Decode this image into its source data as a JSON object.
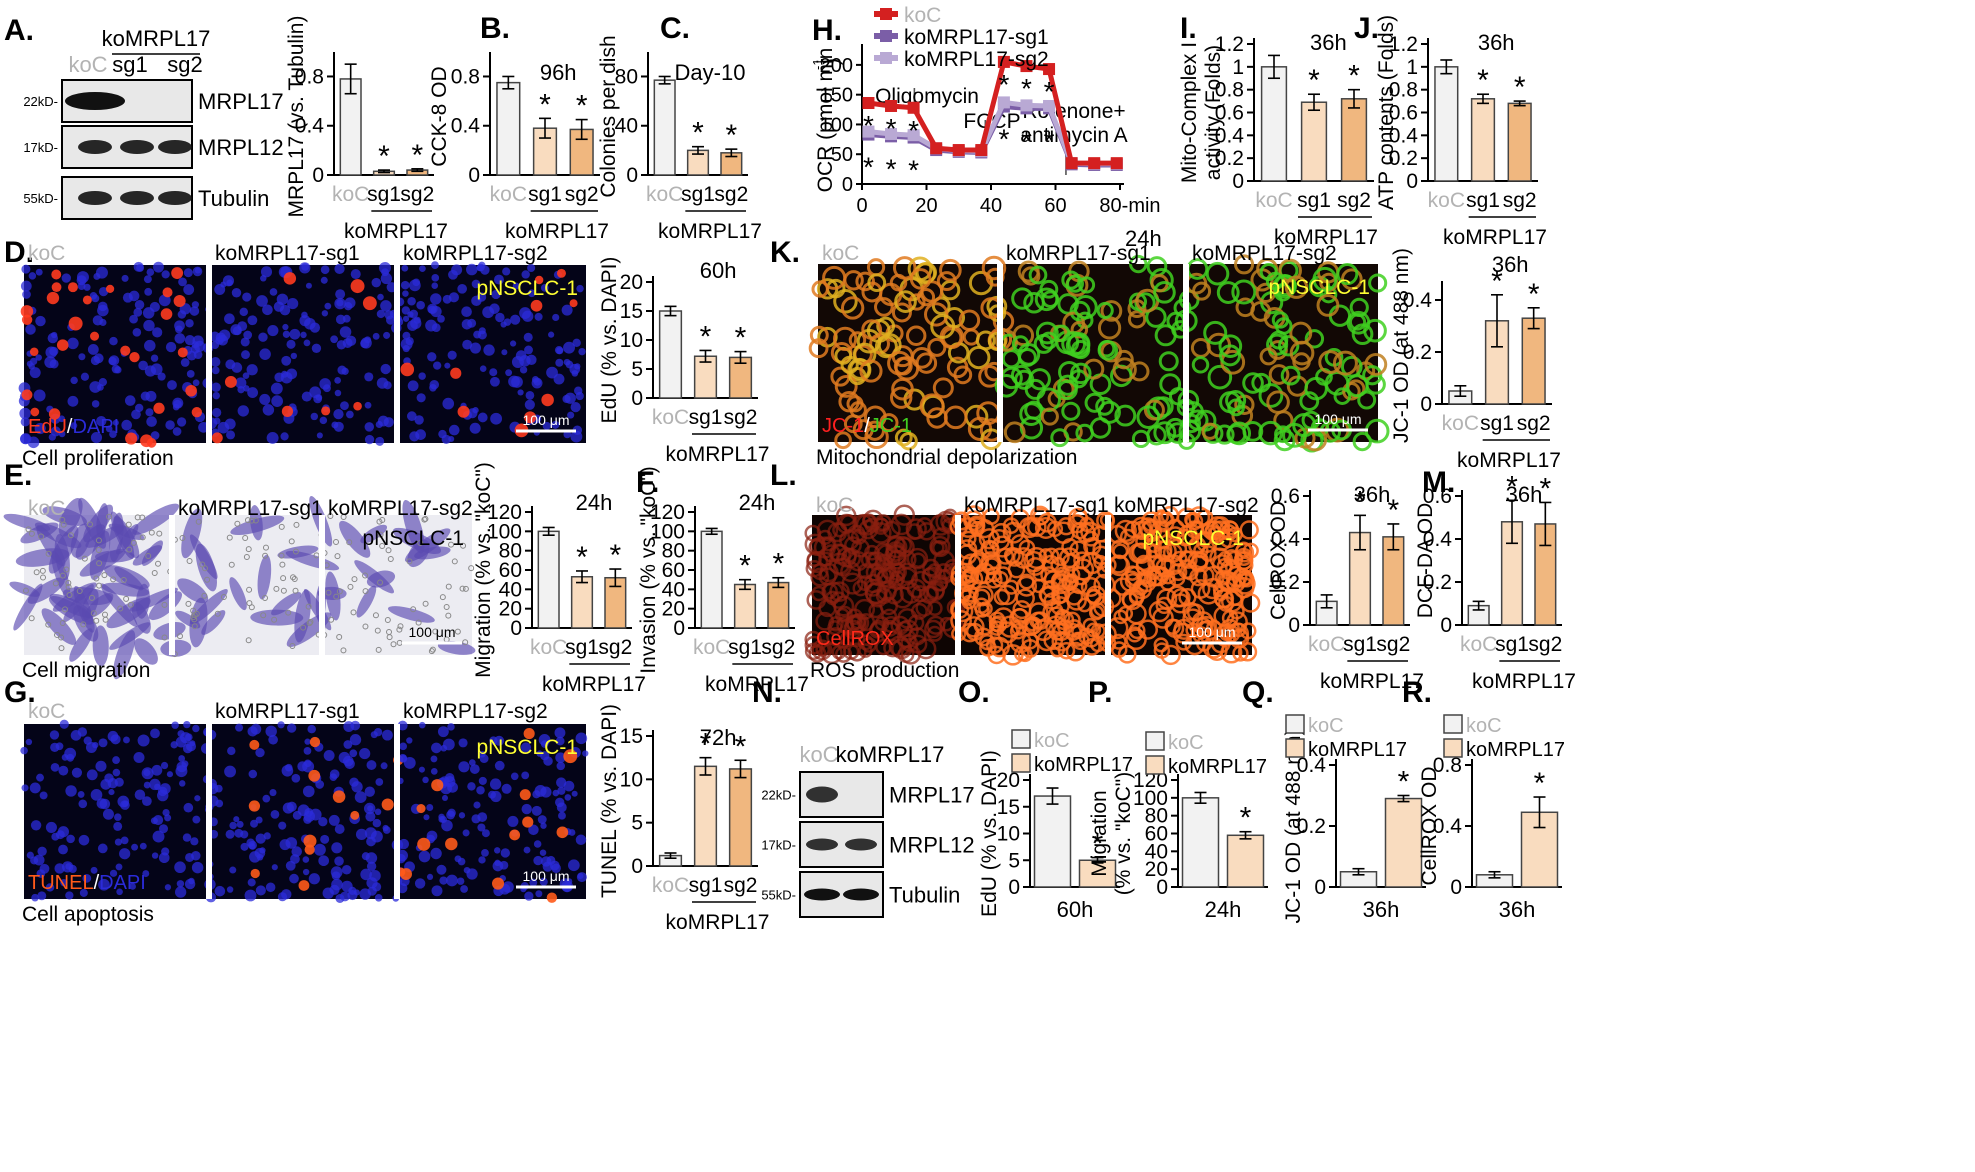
{
  "colors": {
    "koC": "#f2f2f2",
    "sg1": "#f9dcbf",
    "sg2": "#f0b77f",
    "single": "#f9dcbf",
    "koC_label": "#b3b3b3",
    "line_koC": "#d42020",
    "line_sg1": "#7b5ea7",
    "line_sg2": "#b9a9d4",
    "edu": "#ff3b1f",
    "dapi": "#2b2bd9",
    "jc_red": "#ff2020",
    "jc_green": "#40d020",
    "pnsclc": "#ffff33",
    "cellrox": "#ff2a1a",
    "tunel": "#ff5a1a"
  },
  "panels": {
    "A": {
      "letter": "A.",
      "group": "koMRPL17",
      "lanes": [
        "koC",
        "sg1",
        "sg2"
      ],
      "bands": [
        "MRPL17",
        "MRPL12",
        "Tubulin"
      ],
      "markers": [
        "22kD-",
        "17kD-",
        "55kD-"
      ]
    },
    "B": {
      "letter": "B."
    },
    "C": {
      "letter": "C."
    },
    "D": {
      "letter": "D.",
      "cols": [
        "koC",
        "koMRPL17-sg1",
        "koMRPL17-sg2"
      ],
      "badge": "pNSCLC-1",
      "stain1": "EdU",
      "sep": "/",
      "stain2": "DAPI",
      "scale": "100 μm",
      "caption": "Cell proliferation"
    },
    "E": {
      "letter": "E.",
      "cols": [
        "koC",
        "koMRPL17-sg1",
        "koMRPL17-sg2"
      ],
      "badge": "pNSCLC-1",
      "scale": "100 μm",
      "caption": "Cell migration"
    },
    "F": {
      "letter": "F."
    },
    "G": {
      "letter": "G.",
      "cols": [
        "koC",
        "koMRPL17-sg1",
        "koMRPL17-sg2"
      ],
      "badge": "pNSCLC-1",
      "stain1": "TUNEL",
      "sep": "/",
      "stain2": "DAPI",
      "scale": "100 μm",
      "caption": "Cell apoptosis"
    },
    "H": {
      "letter": "H.",
      "ann": [
        "Oligomycin",
        "FCCP",
        "Rotenone+",
        "antimycin A"
      ],
      "time": "24h"
    },
    "I": {
      "letter": "I."
    },
    "J": {
      "letter": "J."
    },
    "K": {
      "letter": "K.",
      "cols": [
        "koC",
        "koMRPL17-sg1",
        "koMRPL17-sg2"
      ],
      "badge": "pNSCLC-1",
      "stain1": "JC-1",
      "sep": "/",
      "stain2": "JC-1",
      "scale": "100 μm",
      "caption": "Mitochondrial depolarization"
    },
    "L": {
      "letter": "L.",
      "cols": [
        "koC",
        "koMRPL17-sg1",
        "koMRPL17-sg2"
      ],
      "badge": "pNSCLC-1",
      "stain1": "CellROX",
      "scale": "100 μm",
      "caption": "ROS production"
    },
    "M": {
      "letter": "M."
    },
    "N": {
      "letter": "N.",
      "lanes": [
        "koC",
        "koMRPL17"
      ],
      "bands": [
        "MRPL17",
        "MRPL12",
        "Tubulin"
      ],
      "markers": [
        "22kD-",
        "17kD-",
        "55kD-"
      ]
    },
    "O": {
      "letter": "O."
    },
    "P": {
      "letter": "P."
    },
    "Q": {
      "letter": "Q."
    },
    "R": {
      "letter": "R."
    }
  },
  "chart_data": [
    {
      "id": "A",
      "type": "bar",
      "categories": [
        "koC",
        "sg1",
        "sg2"
      ],
      "values": [
        0.78,
        0.03,
        0.04
      ],
      "errors": [
        0.12,
        0.01,
        0.01
      ],
      "sig": [
        false,
        true,
        true
      ],
      "ylabel": "MRPL17 (vs. Tubulin)",
      "yticks": [
        0,
        0.4,
        0.8
      ],
      "ylim": [
        0,
        0.95
      ],
      "group": "koMRPL17"
    },
    {
      "id": "B",
      "type": "bar",
      "title": "96h",
      "categories": [
        "koC",
        "sg1",
        "sg2"
      ],
      "values": [
        0.75,
        0.38,
        0.37
      ],
      "errors": [
        0.05,
        0.08,
        0.08
      ],
      "sig": [
        false,
        true,
        true
      ],
      "ylabel": "CCK-8 OD",
      "yticks": [
        0,
        0.4,
        0.8
      ],
      "ylim": [
        0,
        0.95
      ],
      "group": "koMRPL17"
    },
    {
      "id": "C",
      "type": "bar",
      "title": "Day-10",
      "categories": [
        "koC",
        "sg1",
        "sg2"
      ],
      "values": [
        77,
        20,
        18
      ],
      "errors": [
        3,
        3,
        3
      ],
      "sig": [
        false,
        true,
        true
      ],
      "ylabel": "Colonies per dish",
      "yticks": [
        0,
        40,
        80
      ],
      "ylim": [
        0,
        95
      ],
      "group": "koMRPL17"
    },
    {
      "id": "D",
      "type": "bar",
      "title": "60h",
      "categories": [
        "koC",
        "sg1",
        "sg2"
      ],
      "values": [
        15,
        7.2,
        7
      ],
      "errors": [
        0.8,
        1,
        1
      ],
      "sig": [
        false,
        true,
        true
      ],
      "ylabel": "EdU (% vs. DAPI)",
      "yticks": [
        0,
        5,
        10,
        15,
        20
      ],
      "ylim": [
        0,
        20
      ],
      "group": "koMRPL17"
    },
    {
      "id": "E",
      "type": "bar",
      "title": "24h",
      "categories": [
        "koC",
        "sg1",
        "sg2"
      ],
      "values": [
        100,
        53,
        52
      ],
      "errors": [
        4,
        6,
        9
      ],
      "sig": [
        false,
        true,
        true
      ],
      "ylabel": "Migration (% vs. \"koC\")",
      "yticks": [
        0,
        20,
        40,
        60,
        80,
        100,
        120
      ],
      "ylim": [
        0,
        120
      ],
      "group": "koMRPL17"
    },
    {
      "id": "F",
      "type": "bar",
      "title": "24h",
      "categories": [
        "koC",
        "sg1",
        "sg2"
      ],
      "values": [
        100,
        45,
        47
      ],
      "errors": [
        3,
        5,
        5
      ],
      "sig": [
        false,
        true,
        true
      ],
      "ylabel": "Invasion (% vs. \"koC\")",
      "yticks": [
        0,
        20,
        40,
        60,
        80,
        100,
        120
      ],
      "ylim": [
        0,
        120
      ],
      "group": "koMRPL17"
    },
    {
      "id": "G",
      "type": "bar",
      "title": "72h",
      "categories": [
        "koC",
        "sg1",
        "sg2"
      ],
      "values": [
        1.2,
        11.5,
        11.2
      ],
      "errors": [
        0.3,
        1,
        1
      ],
      "sig": [
        false,
        true,
        true
      ],
      "ylabel": "TUNEL (% vs. DAPI)",
      "yticks": [
        0,
        5,
        10,
        15
      ],
      "ylim": [
        0,
        15
      ],
      "group": "koMRPL17"
    },
    {
      "id": "H",
      "type": "line",
      "ylabel": "OCR (pmol min",
      "xlabel": "80-min",
      "xticks": [
        0,
        20,
        40,
        60,
        80
      ],
      "yticks": [
        0,
        50,
        100,
        150,
        200
      ],
      "xlim": [
        0,
        80
      ],
      "ylim": [
        0,
        225
      ],
      "series": [
        {
          "name": "koC",
          "x": [
            2,
            9,
            16,
            23,
            30,
            37,
            44,
            51,
            58,
            65,
            72,
            79
          ],
          "y": [
            136,
            131,
            128,
            60,
            57,
            57,
            205,
            198,
            193,
            35,
            35,
            35
          ],
          "err": [
            5,
            6,
            6,
            4,
            4,
            4,
            8,
            6,
            8,
            5,
            5,
            5
          ]
        },
        {
          "name": "koMRPL17-sg1",
          "x": [
            2,
            9,
            16,
            23,
            30,
            37,
            44,
            51,
            58,
            65,
            72,
            79
          ],
          "y": [
            88,
            84,
            82,
            60,
            56,
            55,
            137,
            132,
            131,
            35,
            34,
            34
          ],
          "err": [
            5,
            5,
            5,
            4,
            4,
            4,
            6,
            6,
            6,
            5,
            5,
            5
          ]
        },
        {
          "name": "koMRPL17-sg2",
          "x": [
            2,
            9,
            16,
            23,
            30,
            37,
            44,
            51,
            58,
            65,
            72,
            79
          ],
          "y": [
            83,
            80,
            78,
            57,
            54,
            53,
            130,
            127,
            127,
            33,
            32,
            32
          ],
          "err": [
            5,
            5,
            5,
            4,
            4,
            4,
            6,
            6,
            6,
            5,
            5,
            5
          ]
        }
      ]
    },
    {
      "id": "I",
      "type": "bar",
      "title": "36h",
      "categories": [
        "koC",
        "sg1",
        "sg2"
      ],
      "values": [
        1,
        0.69,
        0.72
      ],
      "errors": [
        0.1,
        0.07,
        0.08
      ],
      "sig": [
        false,
        true,
        true
      ],
      "ylabel": "Mito-Complex I activity (Folds)",
      "yticks": [
        0,
        0.2,
        0.4,
        0.6,
        0.8,
        1,
        1.2
      ],
      "ylim": [
        0,
        1.2
      ],
      "group": "koMRPL17"
    },
    {
      "id": "J",
      "type": "bar",
      "title": "36h",
      "categories": [
        "koC",
        "sg1",
        "sg2"
      ],
      "values": [
        1,
        0.72,
        0.68
      ],
      "errors": [
        0.06,
        0.04,
        0.02
      ],
      "sig": [
        false,
        true,
        true
      ],
      "ylabel": "ATP contents (Folds)",
      "yticks": [
        0,
        0.2,
        0.4,
        0.6,
        0.8,
        1,
        1.2
      ],
      "ylim": [
        0,
        1.2
      ],
      "group": "koMRPL17"
    },
    {
      "id": "K",
      "type": "bar",
      "title": "36h",
      "categories": [
        "koC",
        "sg1",
        "sg2"
      ],
      "values": [
        0.05,
        0.32,
        0.33
      ],
      "errors": [
        0.02,
        0.1,
        0.04
      ],
      "sig": [
        false,
        true,
        true
      ],
      "ylabel": "JC-1 OD (at 488 nm)",
      "yticks": [
        0,
        0.2,
        0.4
      ],
      "ylim": [
        0,
        0.45
      ],
      "group": "koMRPL17"
    },
    {
      "id": "L",
      "type": "bar",
      "title": "36h",
      "categories": [
        "koC",
        "sg1",
        "sg2"
      ],
      "values": [
        0.11,
        0.43,
        0.41
      ],
      "errors": [
        0.03,
        0.08,
        0.06
      ],
      "sig": [
        false,
        true,
        true
      ],
      "ylabel": "CellROX OD",
      "yticks": [
        0,
        0.2,
        0.4,
        0.6
      ],
      "ylim": [
        0,
        0.6
      ],
      "group": "koMRPL17"
    },
    {
      "id": "M",
      "type": "bar",
      "title": "36h",
      "categories": [
        "koC",
        "sg1",
        "sg2"
      ],
      "values": [
        0.09,
        0.48,
        0.47
      ],
      "errors": [
        0.02,
        0.1,
        0.1
      ],
      "sig": [
        false,
        true,
        true
      ],
      "ylabel": "DCF-DA OD",
      "yticks": [
        0,
        0.2,
        0.4,
        0.6
      ],
      "ylim": [
        0,
        0.6
      ],
      "group": "koMRPL17"
    },
    {
      "id": "O",
      "type": "bar",
      "categories": [
        "koC",
        "koMRPL17"
      ],
      "values": [
        17,
        5
      ],
      "errors": [
        1.5,
        0.5
      ],
      "sig": [
        false,
        true
      ],
      "ylabel": "EdU (% vs. DAPI)",
      "yticks": [
        0,
        5,
        10,
        15,
        20
      ],
      "ylim": [
        0,
        20
      ],
      "xtick": "60h",
      "legend": [
        "koC",
        "koMRPL17"
      ]
    },
    {
      "id": "P",
      "type": "bar",
      "categories": [
        "koC",
        "koMRPL17"
      ],
      "values": [
        100,
        58
      ],
      "errors": [
        6,
        4
      ],
      "sig": [
        false,
        true
      ],
      "ylabel": "Migration",
      "ylabel2": "(% vs. \"koC\")",
      "yticks": [
        0,
        20,
        40,
        60,
        80,
        100,
        120
      ],
      "ylim": [
        0,
        120
      ],
      "xtick": "24h",
      "legend": [
        "koC",
        "koMRPL17"
      ]
    },
    {
      "id": "Q",
      "type": "bar",
      "categories": [
        "koC",
        "koMRPL17"
      ],
      "values": [
        0.05,
        0.29
      ],
      "errors": [
        0.01,
        0.01
      ],
      "sig": [
        false,
        true
      ],
      "ylabel": "JC-1 OD (at 488 nm)",
      "yticks": [
        0,
        0.2,
        0.4
      ],
      "ylim": [
        0,
        0.4
      ],
      "xtick": "36h",
      "legend": [
        "koC",
        "koMRPL17"
      ]
    },
    {
      "id": "R",
      "type": "bar",
      "categories": [
        "koC",
        "koMRPL17"
      ],
      "values": [
        0.08,
        0.49
      ],
      "errors": [
        0.02,
        0.1
      ],
      "sig": [
        false,
        true
      ],
      "ylabel": "CellROX OD",
      "yticks": [
        0,
        0.4,
        0.8
      ],
      "ylim": [
        0,
        0.8
      ],
      "xtick": "36h",
      "legend": [
        "koC",
        "koMRPL17"
      ]
    }
  ]
}
